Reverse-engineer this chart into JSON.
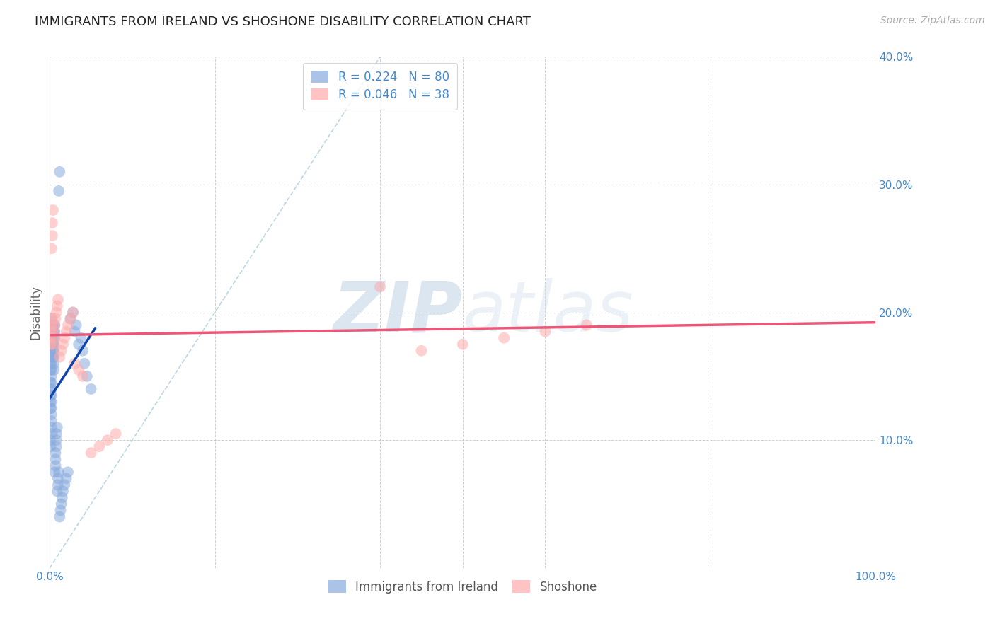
{
  "title": "IMMIGRANTS FROM IRELAND VS SHOSHONE DISABILITY CORRELATION CHART",
  "source": "Source: ZipAtlas.com",
  "ylabel": "Disability",
  "xlim": [
    0,
    1.0
  ],
  "ylim": [
    0,
    0.4
  ],
  "blue_R": 0.224,
  "blue_N": 80,
  "pink_R": 0.046,
  "pink_N": 38,
  "blue_color": "#88AADD",
  "pink_color": "#FFAAAA",
  "blue_line_color": "#1144AA",
  "pink_line_color": "#EE5577",
  "diagonal_color": "#AACCDD",
  "watermark_zip": "ZIP",
  "watermark_atlas": "atlas",
  "blue_scatter_x": [
    0.001,
    0.001,
    0.001,
    0.001,
    0.001,
    0.001,
    0.001,
    0.001,
    0.001,
    0.001,
    0.001,
    0.001,
    0.001,
    0.001,
    0.001,
    0.002,
    0.002,
    0.002,
    0.002,
    0.002,
    0.002,
    0.002,
    0.002,
    0.002,
    0.002,
    0.002,
    0.002,
    0.003,
    0.003,
    0.003,
    0.003,
    0.003,
    0.003,
    0.003,
    0.004,
    0.004,
    0.004,
    0.004,
    0.004,
    0.004,
    0.005,
    0.005,
    0.005,
    0.005,
    0.005,
    0.006,
    0.006,
    0.006,
    0.006,
    0.007,
    0.007,
    0.007,
    0.008,
    0.008,
    0.008,
    0.009,
    0.009,
    0.01,
    0.01,
    0.011,
    0.011,
    0.012,
    0.012,
    0.013,
    0.014,
    0.015,
    0.016,
    0.018,
    0.02,
    0.022,
    0.025,
    0.028,
    0.03,
    0.032,
    0.035,
    0.038,
    0.04,
    0.042,
    0.045,
    0.05
  ],
  "blue_scatter_y": [
    0.155,
    0.16,
    0.165,
    0.17,
    0.175,
    0.18,
    0.185,
    0.19,
    0.125,
    0.13,
    0.135,
    0.14,
    0.145,
    0.095,
    0.1,
    0.105,
    0.11,
    0.115,
    0.12,
    0.125,
    0.13,
    0.135,
    0.14,
    0.145,
    0.15,
    0.155,
    0.16,
    0.165,
    0.17,
    0.175,
    0.18,
    0.185,
    0.19,
    0.195,
    0.165,
    0.17,
    0.175,
    0.18,
    0.185,
    0.19,
    0.155,
    0.16,
    0.165,
    0.17,
    0.175,
    0.18,
    0.185,
    0.19,
    0.075,
    0.08,
    0.085,
    0.09,
    0.095,
    0.1,
    0.105,
    0.11,
    0.06,
    0.065,
    0.07,
    0.075,
    0.295,
    0.31,
    0.04,
    0.045,
    0.05,
    0.055,
    0.06,
    0.065,
    0.07,
    0.075,
    0.195,
    0.2,
    0.185,
    0.19,
    0.175,
    0.18,
    0.17,
    0.16,
    0.15,
    0.14
  ],
  "pink_scatter_x": [
    0.001,
    0.001,
    0.001,
    0.002,
    0.002,
    0.002,
    0.003,
    0.003,
    0.004,
    0.004,
    0.005,
    0.005,
    0.006,
    0.007,
    0.008,
    0.009,
    0.01,
    0.012,
    0.014,
    0.016,
    0.018,
    0.02,
    0.022,
    0.025,
    0.028,
    0.03,
    0.035,
    0.04,
    0.4,
    0.45,
    0.5,
    0.55,
    0.6,
    0.65,
    0.05,
    0.06,
    0.07,
    0.08
  ],
  "pink_scatter_y": [
    0.175,
    0.18,
    0.185,
    0.19,
    0.195,
    0.25,
    0.26,
    0.27,
    0.28,
    0.175,
    0.18,
    0.185,
    0.19,
    0.195,
    0.2,
    0.205,
    0.21,
    0.165,
    0.17,
    0.175,
    0.18,
    0.185,
    0.19,
    0.195,
    0.2,
    0.16,
    0.155,
    0.15,
    0.22,
    0.17,
    0.175,
    0.18,
    0.185,
    0.19,
    0.09,
    0.095,
    0.1,
    0.105
  ]
}
